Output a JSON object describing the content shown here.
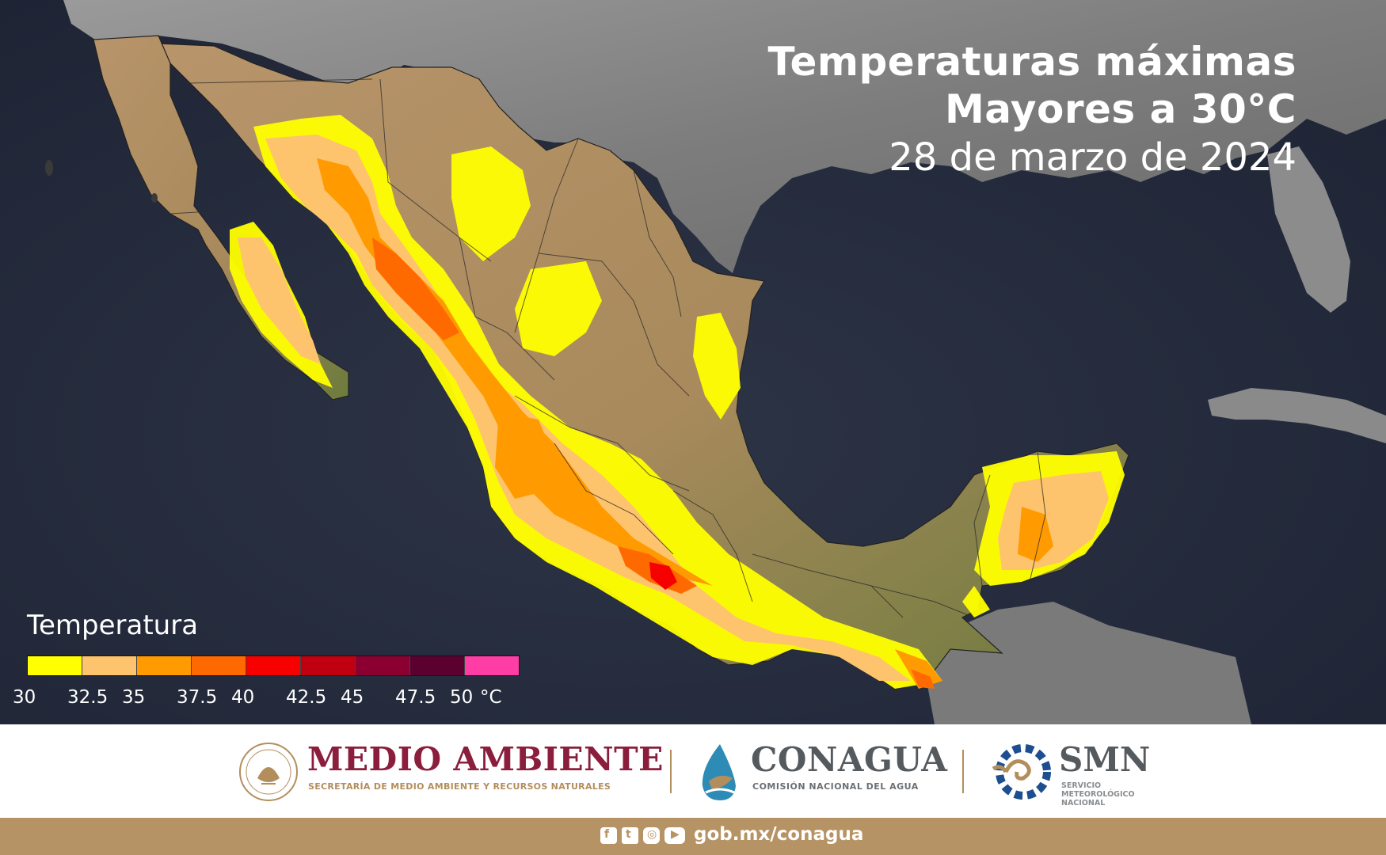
{
  "title": {
    "line1": "Temperaturas máximas",
    "line2": "Mayores a 30°C",
    "date": "28 de marzo de 2024"
  },
  "legend": {
    "title": "Temperatura",
    "unit": "°C",
    "ticks": [
      "30",
      "32.5",
      "35",
      "37.5",
      "40",
      "42.5",
      "45",
      "47.5",
      "50"
    ],
    "colors": [
      "#ffff00",
      "#fec36d",
      "#ff9a00",
      "#ff6a00",
      "#f70000",
      "#c00010",
      "#8b0030",
      "#5c0030",
      "#ff3ea5"
    ]
  },
  "footer": {
    "medio_ambiente": {
      "name": "MEDIO AMBIENTE",
      "subtitle": "SECRETARÍA DE MEDIO AMBIENTE Y RECURSOS NATURALES",
      "seal_icon": "mexico-seal-icon"
    },
    "conagua": {
      "name": "CONAGUA",
      "subtitle": "COMISIÓN NACIONAL DEL AGUA",
      "logo_icon": "conagua-drop-icon"
    },
    "smn": {
      "name": "SMN",
      "subtitle": "SERVICIO METEOROLÓGICO NACIONAL",
      "logo_icon": "smn-gear-icon"
    },
    "url": "gob.mx/conagua",
    "social_icons": [
      "facebook-icon",
      "twitter-icon",
      "instagram-icon",
      "youtube-icon"
    ]
  },
  "colors": {
    "ocean": "#232a3a",
    "land_dry": "#b48f62",
    "land_green": "#6e7c3e",
    "usa_land": "#8f8f8f",
    "footer_gold": "#b69364",
    "medio_ambiente_red": "#8a1e3c"
  }
}
